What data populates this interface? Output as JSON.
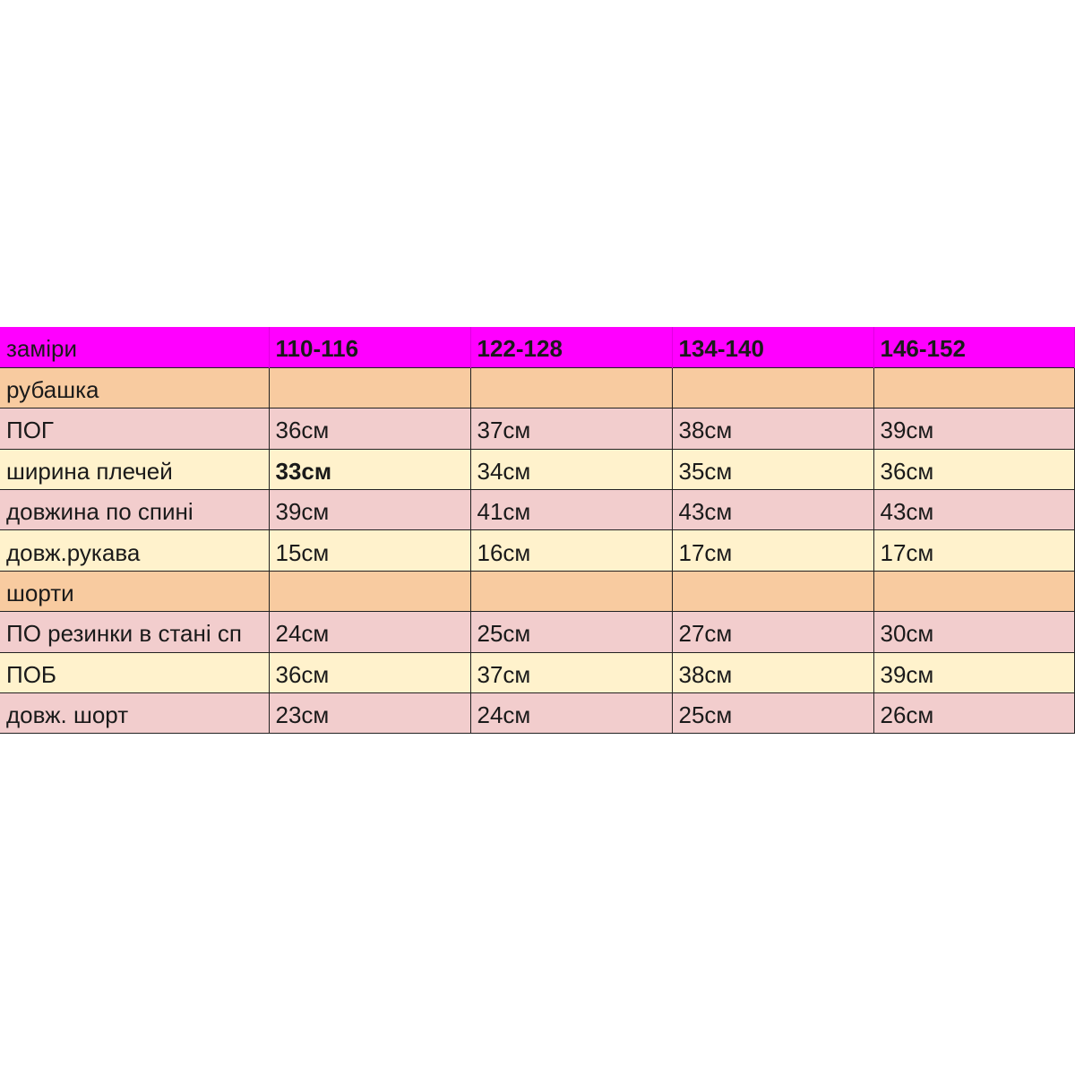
{
  "table": {
    "header": [
      "заміри",
      "110-116",
      "122-128",
      "134-140",
      "146-152"
    ],
    "rows": [
      {
        "label": "рубашка",
        "type": "section",
        "values": [
          "",
          "",
          "",
          ""
        ]
      },
      {
        "label": "ПОГ",
        "type": "pink",
        "values": [
          "36см",
          "37см",
          "38см",
          "39см"
        ]
      },
      {
        "label": "ширина плечей",
        "type": "cream",
        "values": [
          "33см",
          "34см",
          "35см",
          "36см"
        ],
        "bold_first": true
      },
      {
        "label": "довжина по спині",
        "type": "pink",
        "values": [
          "39см",
          "41см",
          "43см",
          "43см"
        ]
      },
      {
        "label": "довж.рукава",
        "type": "cream",
        "values": [
          "15см",
          "16см",
          "17см",
          "17см"
        ]
      },
      {
        "label": "шорти",
        "type": "section",
        "values": [
          "",
          "",
          "",
          ""
        ]
      },
      {
        "label": "ПО резинки в стані сп",
        "type": "pink",
        "values": [
          "24см",
          "25см",
          "27см",
          "30см"
        ]
      },
      {
        "label": "ПОБ",
        "type": "cream",
        "values": [
          "36см",
          "37см",
          "38см",
          "39см"
        ]
      },
      {
        "label": "довж. шорт",
        "type": "pink",
        "values": [
          "23см",
          "24см",
          "25см",
          "26см"
        ]
      }
    ]
  },
  "colors": {
    "header": "#ff00ff",
    "section": "#f8cba0",
    "pink": "#f2cdcd",
    "cream": "#fff2cc"
  }
}
